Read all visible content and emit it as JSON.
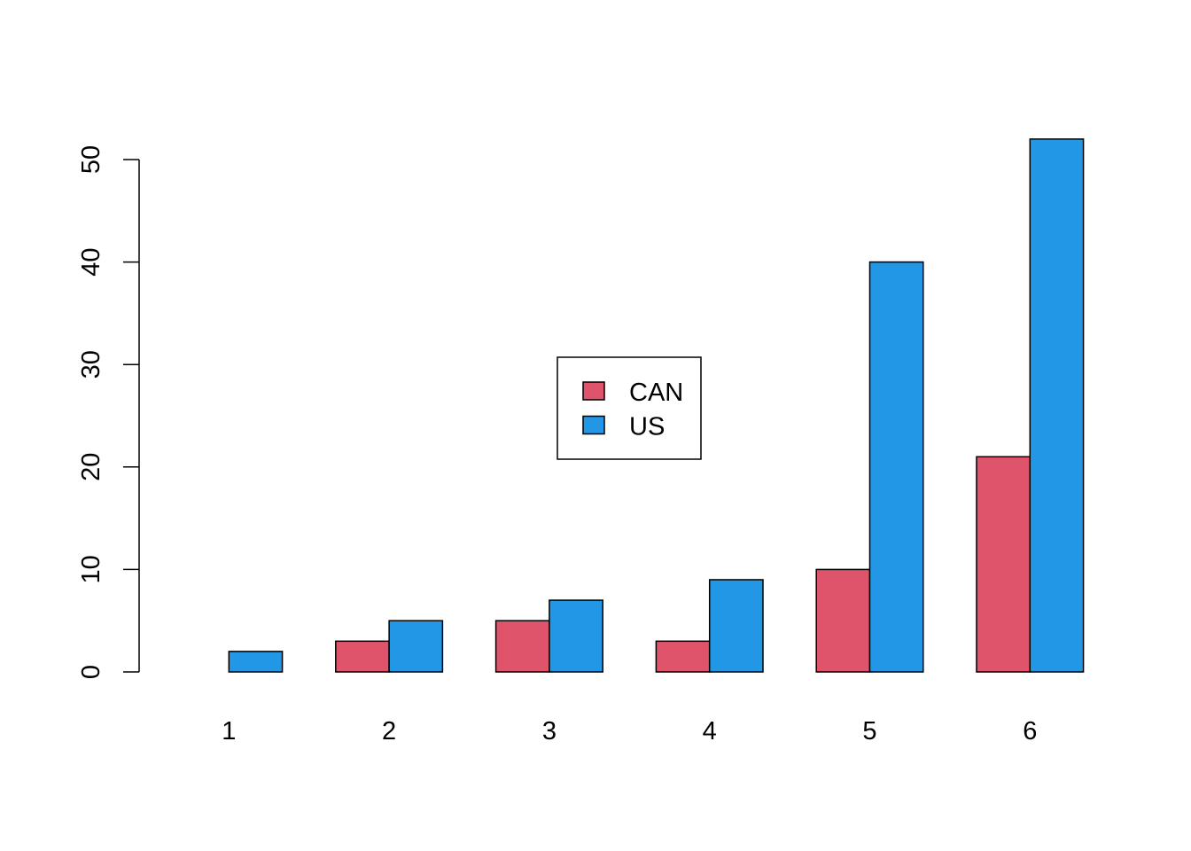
{
  "chart_data": {
    "type": "bar",
    "title": "",
    "xlabel": "",
    "ylabel": "",
    "categories": [
      "1",
      "2",
      "3",
      "4",
      "5",
      "6"
    ],
    "series": [
      {
        "name": "CAN",
        "color": "#DF536B",
        "values": [
          0,
          3,
          5,
          3,
          10,
          21
        ]
      },
      {
        "name": "US",
        "color": "#2297E6",
        "values": [
          2,
          5,
          7,
          9,
          40,
          52
        ]
      }
    ],
    "ylim": [
      0,
      52
    ],
    "yticks": [
      0,
      10,
      20,
      30,
      40,
      50
    ],
    "legend_position": "center",
    "grid": false
  }
}
